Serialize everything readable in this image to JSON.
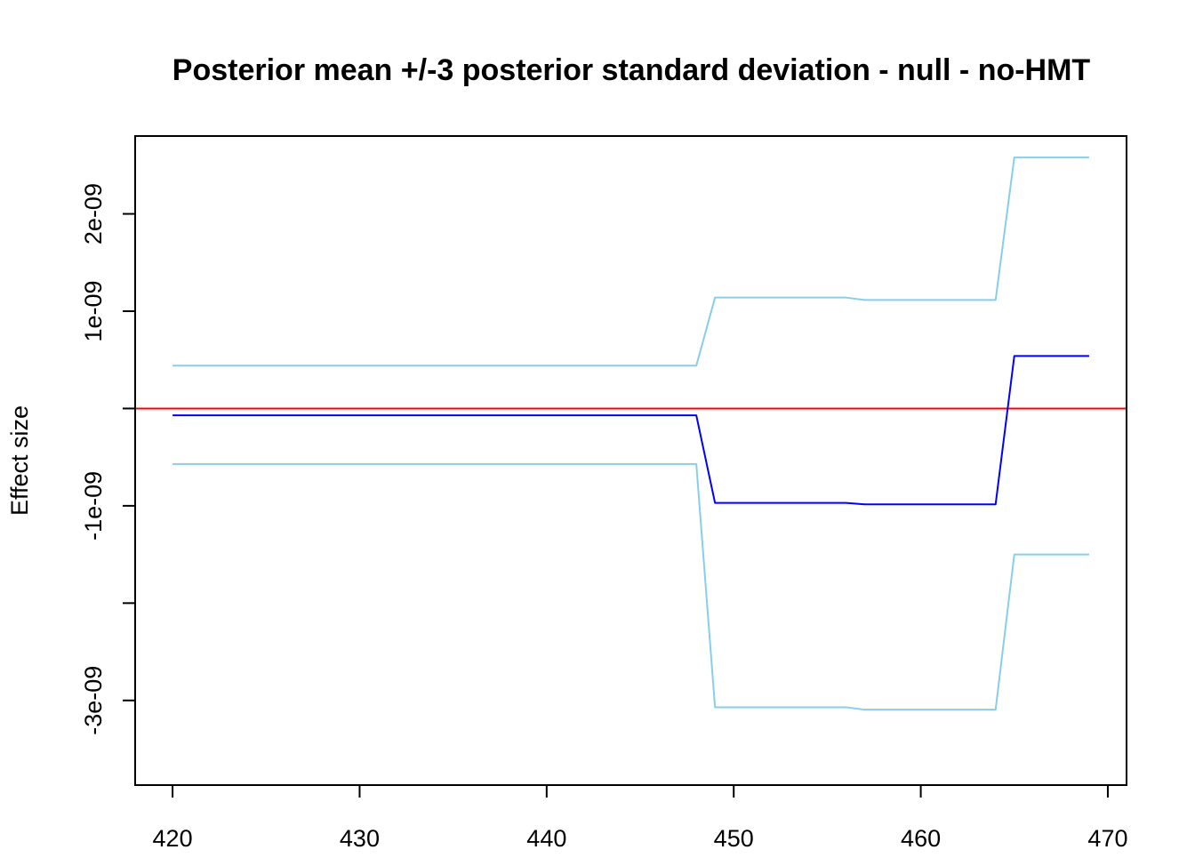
{
  "chart_data": {
    "type": "line",
    "title": "Posterior mean +/-3 posterior standard deviation - null - no-HMT",
    "xlabel": "",
    "ylabel": "Effect size",
    "xlim": [
      418,
      471
    ],
    "ylim": [
      -3.87e-09,
      2.8e-09
    ],
    "x_ticks": [
      420,
      430,
      440,
      450,
      460,
      470
    ],
    "x_tick_labels": [
      "420",
      "430",
      "440",
      "450",
      "460",
      "470"
    ],
    "y_ticks": [
      -3e-09,
      -2e-09,
      -1e-09,
      0,
      1e-09,
      2e-09
    ],
    "y_tick_labels": [
      "-3e-09",
      "",
      "-1e-09",
      "",
      "1e-09",
      "2e-09"
    ],
    "x": [
      420,
      421,
      422,
      423,
      424,
      425,
      426,
      427,
      428,
      429,
      430,
      431,
      432,
      433,
      434,
      435,
      436,
      437,
      438,
      439,
      440,
      441,
      442,
      443,
      444,
      445,
      446,
      447,
      448,
      449,
      450,
      451,
      452,
      453,
      454,
      455,
      456,
      457,
      458,
      459,
      460,
      461,
      462,
      463,
      464,
      465,
      466,
      467,
      468,
      469
    ],
    "series": [
      {
        "color": "#87CEEB",
        "values": [
          4.4e-10,
          4.4e-10,
          4.4e-10,
          4.4e-10,
          4.4e-10,
          4.4e-10,
          4.4e-10,
          4.4e-10,
          4.4e-10,
          4.4e-10,
          4.4e-10,
          4.4e-10,
          4.4e-10,
          4.4e-10,
          4.4e-10,
          4.4e-10,
          4.4e-10,
          4.4e-10,
          4.4e-10,
          4.4e-10,
          4.4e-10,
          4.4e-10,
          4.4e-10,
          4.4e-10,
          4.4e-10,
          4.4e-10,
          4.4e-10,
          4.4e-10,
          4.4e-10,
          1.14e-09,
          1.14e-09,
          1.14e-09,
          1.14e-09,
          1.14e-09,
          1.14e-09,
          1.14e-09,
          1.14e-09,
          1.115e-09,
          1.115e-09,
          1.115e-09,
          1.115e-09,
          1.115e-09,
          1.115e-09,
          1.115e-09,
          1.115e-09,
          2.58e-09,
          2.58e-09,
          2.58e-09,
          2.58e-09,
          2.58e-09
        ]
      },
      {
        "color": "#0000FF",
        "values": [
          -7e-11,
          -7e-11,
          -7e-11,
          -7e-11,
          -7e-11,
          -7e-11,
          -7e-11,
          -7e-11,
          -7e-11,
          -7e-11,
          -7e-11,
          -7e-11,
          -7e-11,
          -7e-11,
          -7e-11,
          -7e-11,
          -7e-11,
          -7e-11,
          -7e-11,
          -7e-11,
          -7e-11,
          -7e-11,
          -7e-11,
          -7e-11,
          -7e-11,
          -7e-11,
          -7e-11,
          -7e-11,
          -7e-11,
          -9.7e-10,
          -9.7e-10,
          -9.7e-10,
          -9.7e-10,
          -9.7e-10,
          -9.7e-10,
          -9.7e-10,
          -9.7e-10,
          -9.85e-10,
          -9.85e-10,
          -9.85e-10,
          -9.85e-10,
          -9.85e-10,
          -9.85e-10,
          -9.85e-10,
          -9.85e-10,
          5.4e-10,
          5.4e-10,
          5.4e-10,
          5.4e-10,
          5.4e-10
        ]
      },
      {
        "color": "#87CEEB",
        "values": [
          -5.7e-10,
          -5.7e-10,
          -5.7e-10,
          -5.7e-10,
          -5.7e-10,
          -5.7e-10,
          -5.7e-10,
          -5.7e-10,
          -5.7e-10,
          -5.7e-10,
          -5.7e-10,
          -5.7e-10,
          -5.7e-10,
          -5.7e-10,
          -5.7e-10,
          -5.7e-10,
          -5.7e-10,
          -5.7e-10,
          -5.7e-10,
          -5.7e-10,
          -5.7e-10,
          -5.7e-10,
          -5.7e-10,
          -5.7e-10,
          -5.7e-10,
          -5.7e-10,
          -5.7e-10,
          -5.7e-10,
          -5.7e-10,
          -3.07e-09,
          -3.07e-09,
          -3.07e-09,
          -3.07e-09,
          -3.07e-09,
          -3.07e-09,
          -3.07e-09,
          -3.07e-09,
          -3.095e-09,
          -3.095e-09,
          -3.095e-09,
          -3.095e-09,
          -3.095e-09,
          -3.095e-09,
          -3.095e-09,
          -3.095e-09,
          -1.5e-09,
          -1.5e-09,
          -1.5e-09,
          -1.5e-09,
          -1.5e-09
        ]
      }
    ],
    "hlines": [
      {
        "y": 0,
        "color": "#FF0000"
      }
    ],
    "grid": false,
    "legend": "none"
  }
}
